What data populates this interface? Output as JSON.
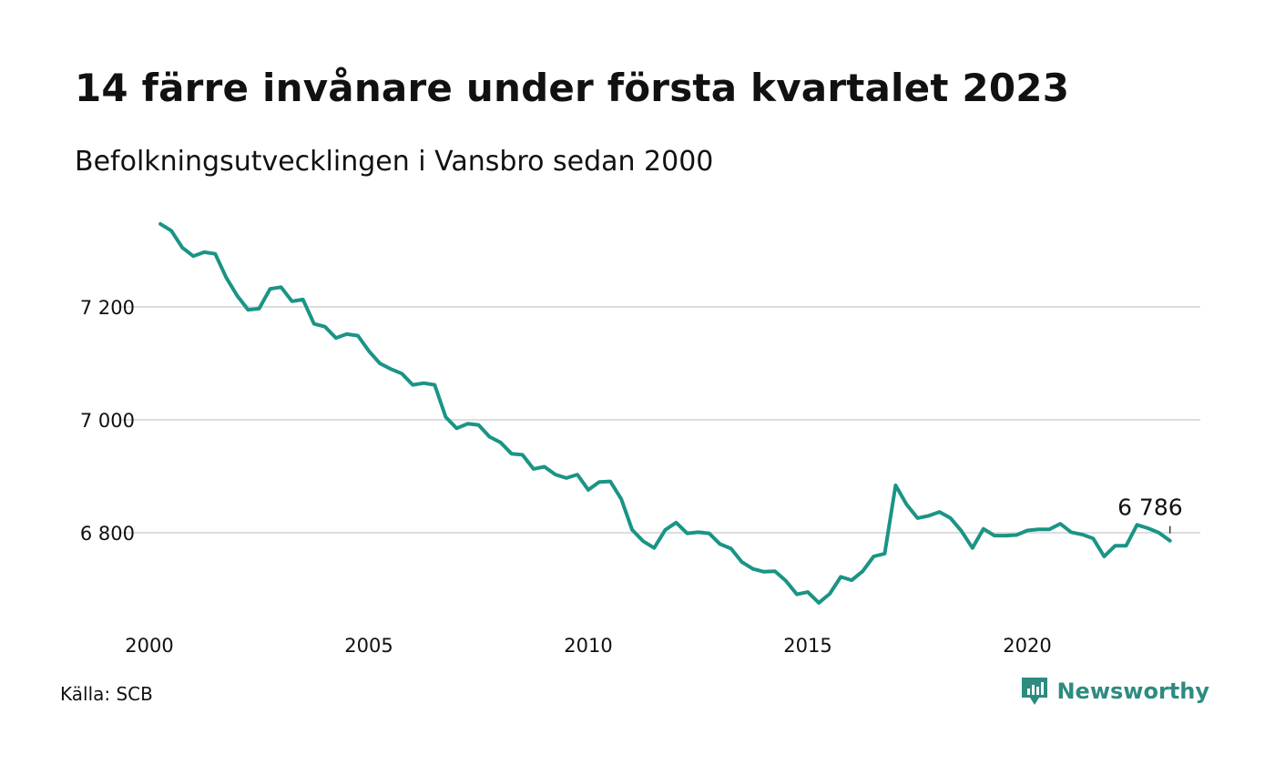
{
  "header": {
    "title": "14 färre invånare under första kvartalet 2023",
    "subtitle": "Befolkningsutvecklingen i Vansbro sedan 2000"
  },
  "footer": {
    "source": "Källa: SCB",
    "brand": "Newsworthy"
  },
  "colors": {
    "line": "#1a9485",
    "grid": "#dddddd",
    "brand": "#2e8b80"
  },
  "chart_data": {
    "type": "line",
    "title": "14 färre invånare under första kvartalet 2023",
    "subtitle": "Befolkningsutvecklingen i Vansbro sedan 2000",
    "xlabel": "",
    "ylabel": "",
    "x_ticks": [
      2000,
      2005,
      2010,
      2015,
      2020
    ],
    "x_tick_labels": [
      "2000",
      "2005",
      "2010",
      "2015",
      "2020"
    ],
    "y_ticks": [
      6800,
      7000,
      7200
    ],
    "y_tick_labels": [
      "6 800",
      "7 000",
      "7 200"
    ],
    "xlim": [
      2000,
      2023.5
    ],
    "ylim": [
      6660,
      7360
    ],
    "grid": "horizontal",
    "end_label": "6 786",
    "series": [
      {
        "x_start": 2000.25,
        "x_step": 0.25,
        "values": [
          7347,
          7335,
          7305,
          7290,
          7297,
          7294,
          7252,
          7220,
          7195,
          7197,
          7232,
          7235,
          7210,
          7213,
          7170,
          7165,
          7145,
          7152,
          7149,
          7122,
          7100,
          7090,
          7082,
          7062,
          7065,
          7062,
          7005,
          6985,
          6993,
          6991,
          6970,
          6960,
          6940,
          6938,
          6913,
          6917,
          6903,
          6897,
          6903,
          6876,
          6890,
          6891,
          6860,
          6805,
          6785,
          6773,
          6805,
          6818,
          6799,
          6801,
          6799,
          6780,
          6772,
          6748,
          6736,
          6731,
          6732,
          6715,
          6691,
          6695,
          6676,
          6692,
          6722,
          6716,
          6732,
          6758,
          6763,
          6884,
          6850,
          6826,
          6830,
          6837,
          6826,
          6803,
          6773,
          6807,
          6795,
          6795,
          6796,
          6804,
          6806,
          6806,
          6816,
          6801,
          6797,
          6790,
          6758,
          6777,
          6777,
          6814,
          6808,
          6800,
          6786
        ]
      }
    ]
  }
}
